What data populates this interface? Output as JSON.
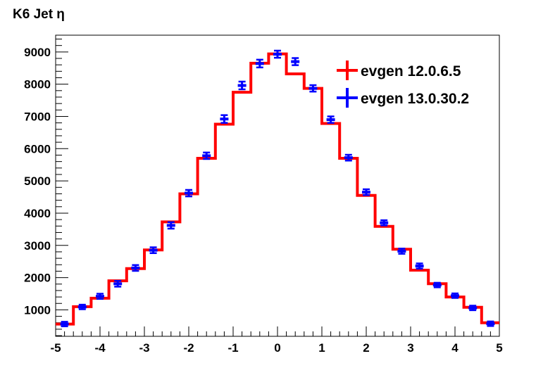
{
  "chart_data": {
    "type": "line",
    "title": "K6 Jet η",
    "xlabel": "",
    "ylabel": "",
    "xlim": [
      -5,
      5
    ],
    "ylim": [
      180,
      9520
    ],
    "x_ticks": [
      -5,
      -4,
      -3,
      -2,
      -1,
      0,
      1,
      2,
      3,
      4,
      5
    ],
    "x_tick_labels": [
      "-5",
      "-4",
      "-3",
      "-2",
      "-1",
      "0",
      "1",
      "2",
      "3",
      "4",
      "5"
    ],
    "y_ticks": [
      1000,
      2000,
      3000,
      4000,
      5000,
      6000,
      7000,
      8000,
      9000
    ],
    "y_tick_labels": [
      "1000",
      "2000",
      "3000",
      "4000",
      "5000",
      "6000",
      "7000",
      "8000",
      "9000"
    ],
    "bin_edges": [
      -5.0,
      -4.6,
      -4.2,
      -3.8,
      -3.4,
      -3.0,
      -2.6,
      -2.2,
      -1.8,
      -1.4,
      -1.0,
      -0.6,
      -0.2,
      0.2,
      0.6,
      1.0,
      1.4,
      1.8,
      2.2,
      2.6,
      3.0,
      3.4,
      3.8,
      4.2,
      4.6,
      5.0
    ],
    "x": [
      -4.8,
      -4.4,
      -4.0,
      -3.6,
      -3.2,
      -2.8,
      -2.4,
      -2.0,
      -1.6,
      -1.2,
      -0.8,
      -0.4,
      0.0,
      0.4,
      0.8,
      1.2,
      1.6,
      2.0,
      2.4,
      2.8,
      3.2,
      3.6,
      4.0,
      4.4,
      4.8
    ],
    "legend_position": "top-right",
    "grid": false,
    "series": [
      {
        "name": "evgen 12.0.6.5",
        "style": "histogram-step",
        "color": "#ff0000",
        "values": [
          560,
          1100,
          1360,
          1900,
          2280,
          2860,
          3730,
          4600,
          5700,
          6760,
          7750,
          8650,
          8940,
          8320,
          7870,
          6780,
          5700,
          4550,
          3590,
          2880,
          2230,
          1810,
          1400,
          1080,
          600
        ]
      },
      {
        "name": "evgen 13.0.30.2",
        "style": "points-with-errors",
        "color": "#0000ff",
        "values": [
          560,
          1090,
          1420,
          1810,
          2300,
          2850,
          3620,
          4620,
          5780,
          6920,
          7960,
          8640,
          8930,
          8700,
          7870,
          6900,
          5720,
          4650,
          3700,
          2820,
          2360,
          1770,
          1440,
          1060,
          570
        ],
        "errors": [
          70,
          70,
          80,
          90,
          90,
          90,
          100,
          100,
          100,
          120,
          120,
          120,
          110,
          110,
          100,
          100,
          90,
          90,
          80,
          80,
          80,
          70,
          70,
          70,
          70
        ]
      }
    ]
  }
}
